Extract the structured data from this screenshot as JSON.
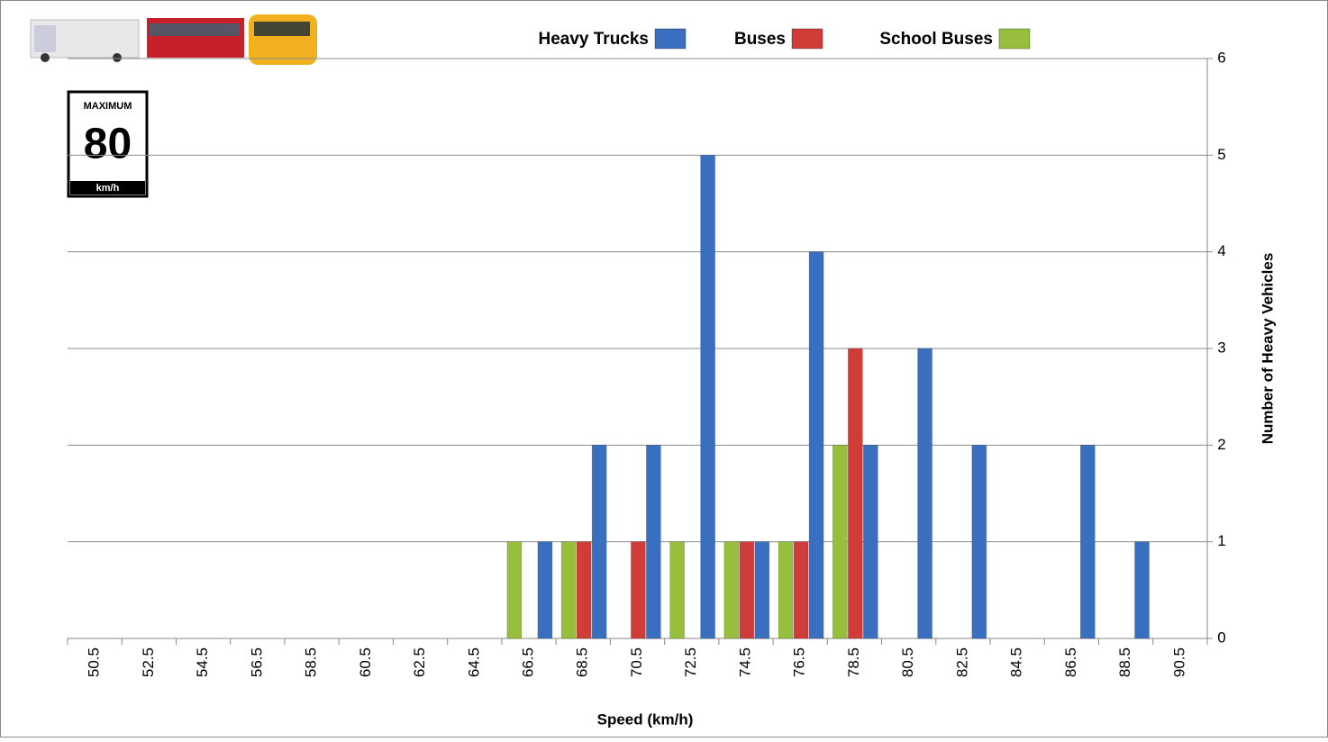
{
  "chart_data": {
    "type": "bar",
    "x_label": "Speed (km/h)",
    "y_label": "Number of Heavy Vehicles",
    "categories": [
      "50.5",
      "52.5",
      "54.5",
      "56.5",
      "58.5",
      "60.5",
      "62.5",
      "64.5",
      "66.5",
      "68.5",
      "70.5",
      "72.5",
      "74.5",
      "76.5",
      "78.5",
      "80.5",
      "82.5",
      "84.5",
      "86.5",
      "88.5",
      "90.5"
    ],
    "series": [
      {
        "name": "Heavy Trucks",
        "color": "#3a6fc0",
        "values": [
          0,
          0,
          0,
          0,
          0,
          0,
          0,
          0,
          1,
          2,
          2,
          5,
          1,
          4,
          2,
          3,
          2,
          0,
          2,
          1,
          0
        ]
      },
      {
        "name": "Buses",
        "color": "#d03c38",
        "values": [
          0,
          0,
          0,
          0,
          0,
          0,
          0,
          0,
          0,
          1,
          1,
          0,
          1,
          1,
          3,
          0,
          0,
          0,
          0,
          0,
          0
        ]
      },
      {
        "name": "School Buses",
        "color": "#97be3d",
        "values": [
          0,
          0,
          0,
          0,
          0,
          0,
          0,
          0,
          1,
          1,
          0,
          1,
          1,
          1,
          2,
          0,
          0,
          0,
          0,
          0,
          0
        ]
      }
    ],
    "ylim": [
      0,
      6
    ],
    "yticks": [
      0,
      1,
      2,
      3,
      4,
      5,
      6
    ],
    "y_axis_side": "right",
    "grid": true,
    "legend_position": "top"
  },
  "sign": {
    "top": "MAXIMUM",
    "number": "80",
    "unit": "km/h"
  }
}
